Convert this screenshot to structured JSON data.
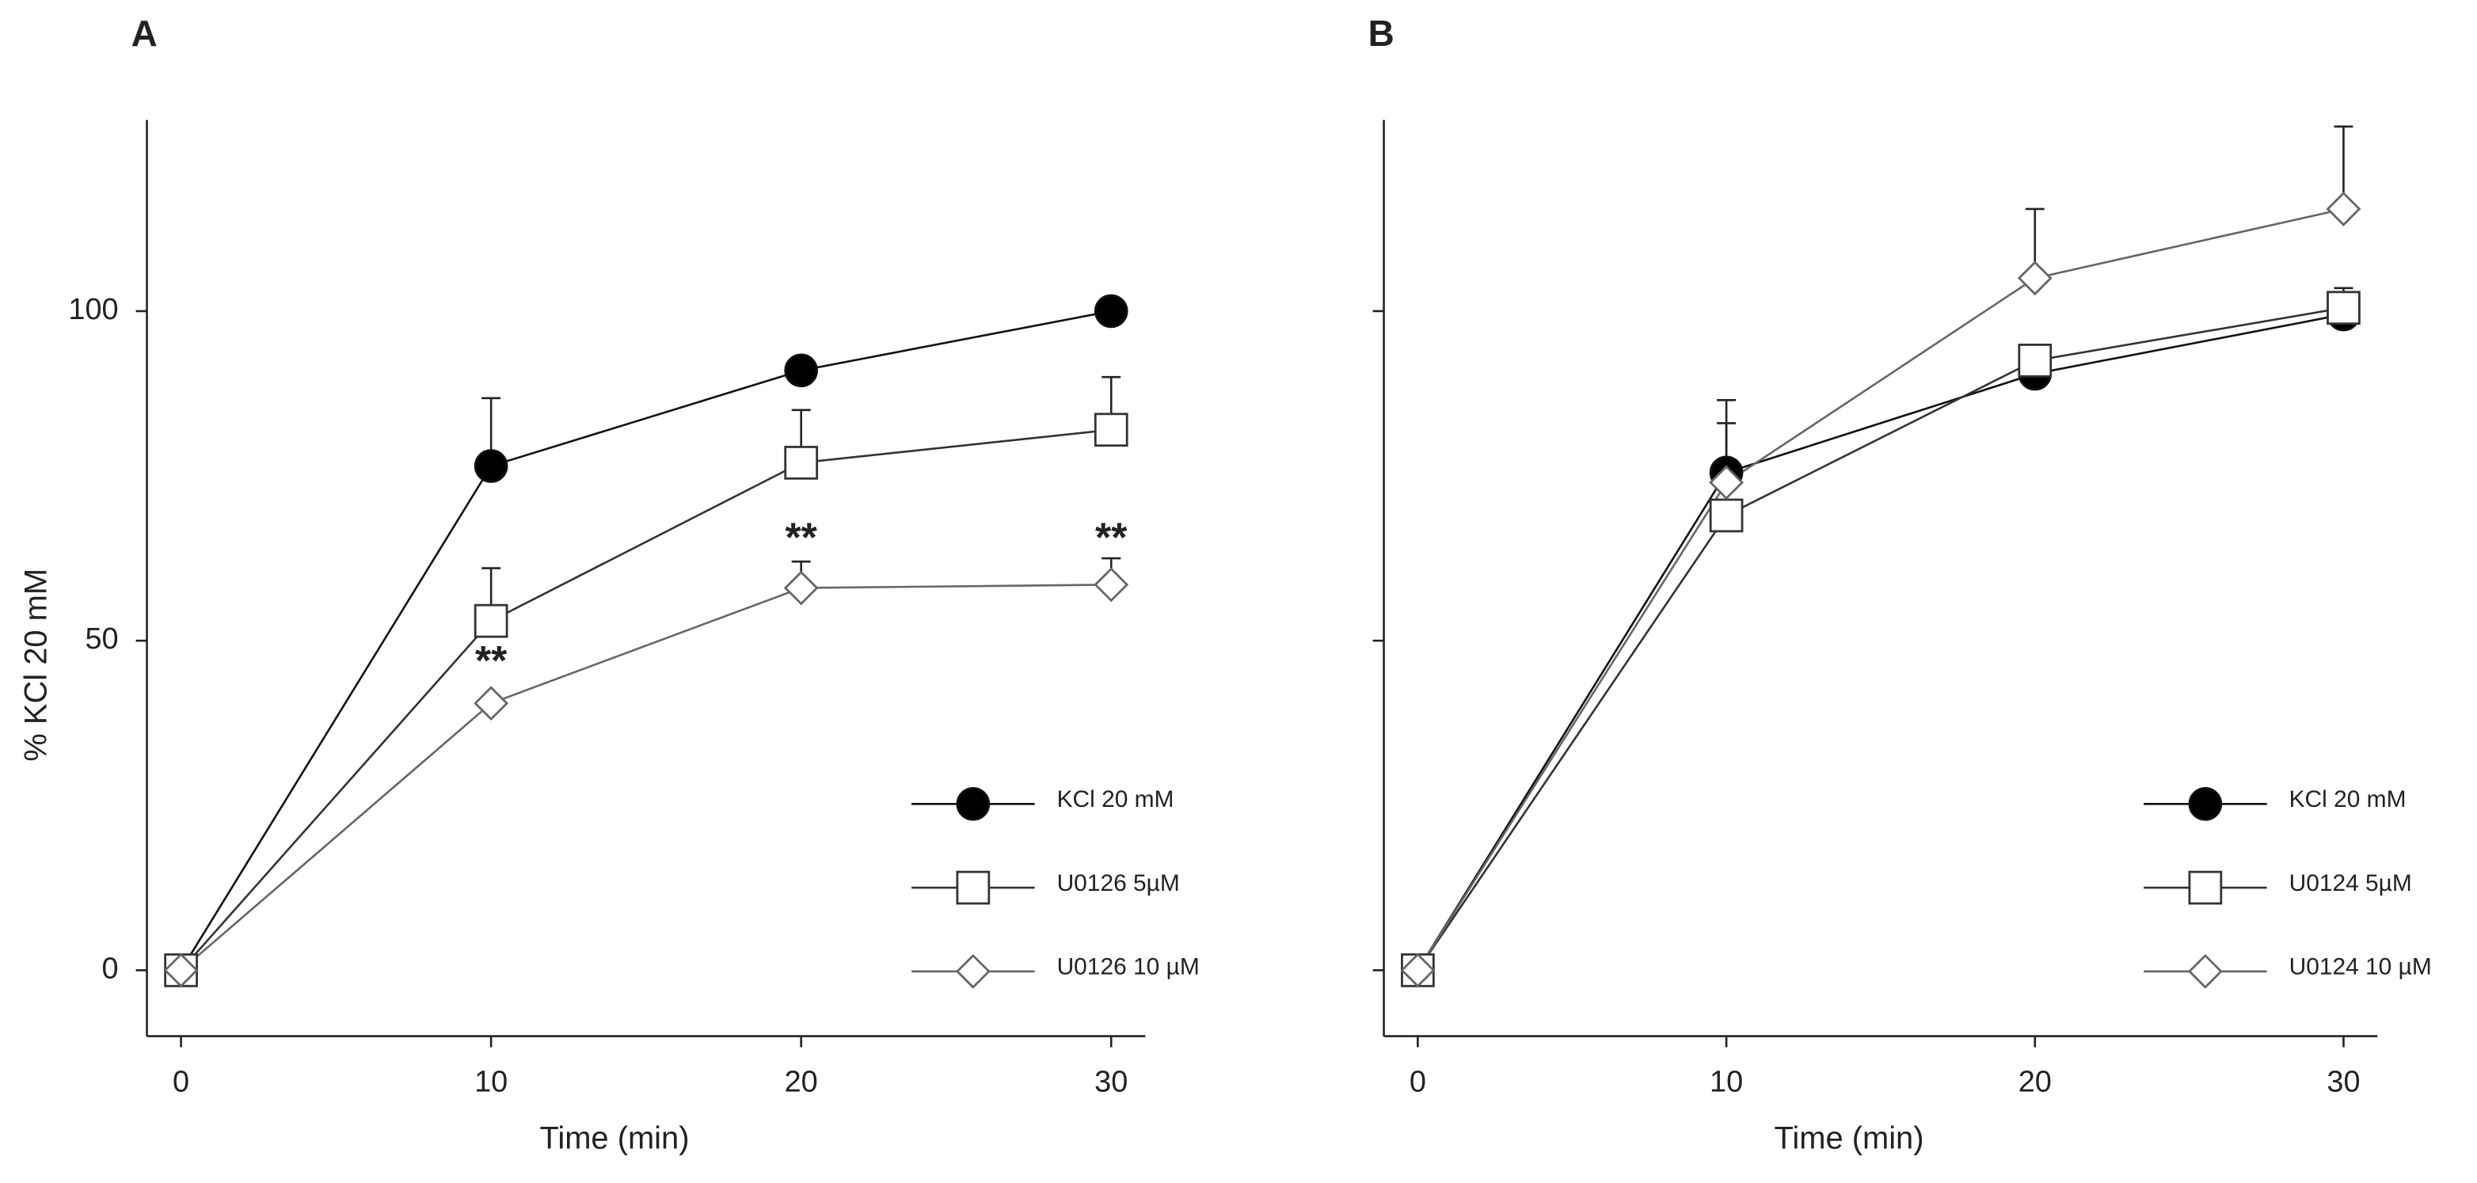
{
  "chart_data": [
    {
      "type": "line",
      "panel": "A",
      "xlabel": "Time (min)",
      "ylabel": "% KCl 20 mM",
      "x": [
        0,
        10,
        20,
        30
      ],
      "xlim": [
        -1.1,
        31.1
      ],
      "xticks": [
        0,
        10,
        20,
        30
      ],
      "ylim": [
        -10,
        129
      ],
      "yticks": [
        0,
        50,
        100
      ],
      "legend": "lower right",
      "series": [
        {
          "name": "KCl 20 mM",
          "marker": "circle",
          "color": "#111111",
          "fill": "#000000",
          "values": [
            0,
            76.5,
            91,
            100
          ],
          "errors": [
            null,
            10.3,
            null,
            null
          ]
        },
        {
          "name": "U0126 5µM",
          "marker": "square",
          "color": "#333333",
          "fill": "#ffffff",
          "values": [
            0,
            53,
            77,
            82
          ],
          "errors": [
            null,
            8,
            8,
            8
          ]
        },
        {
          "name": "U0126 10 µM",
          "marker": "diamond",
          "color": "#666666",
          "fill": "#ffffff",
          "values": [
            0,
            40.5,
            58,
            58.5
          ],
          "errors": [
            null,
            null,
            4,
            4
          ]
        }
      ],
      "annotations": [
        {
          "text": "**",
          "x": 10,
          "y": 46.5
        },
        {
          "text": "**",
          "x": 20,
          "y": 65.2
        },
        {
          "text": "**",
          "x": 30,
          "y": 65.2
        }
      ]
    },
    {
      "type": "line",
      "panel": "B",
      "xlabel": "Time (min)",
      "x": [
        0,
        10,
        20,
        30
      ],
      "xlim": [
        -1.1,
        31.1
      ],
      "xticks": [
        0,
        10,
        20,
        30
      ],
      "ylim": [
        -10,
        129
      ],
      "yticks": [
        0,
        50,
        100
      ],
      "legend": "lower right",
      "series": [
        {
          "name": "KCl 20 mM",
          "marker": "circle",
          "color": "#111111",
          "fill": "#000000",
          "values": [
            0,
            75.5,
            90.5,
            99.5
          ],
          "errors": [
            null,
            11,
            2,
            4
          ]
        },
        {
          "name": "U0124 5µM",
          "marker": "square",
          "color": "#333333",
          "fill": "#ffffff",
          "values": [
            0,
            69,
            92.5,
            100.5
          ],
          "errors": [
            null,
            14,
            null,
            null
          ]
        },
        {
          "name": "U0124 10 µM",
          "marker": "diamond",
          "color": "#666666",
          "fill": "#ffffff",
          "values": [
            0,
            74,
            105,
            115.5
          ],
          "errors": [
            null,
            null,
            10.5,
            12.5
          ]
        }
      ]
    }
  ]
}
